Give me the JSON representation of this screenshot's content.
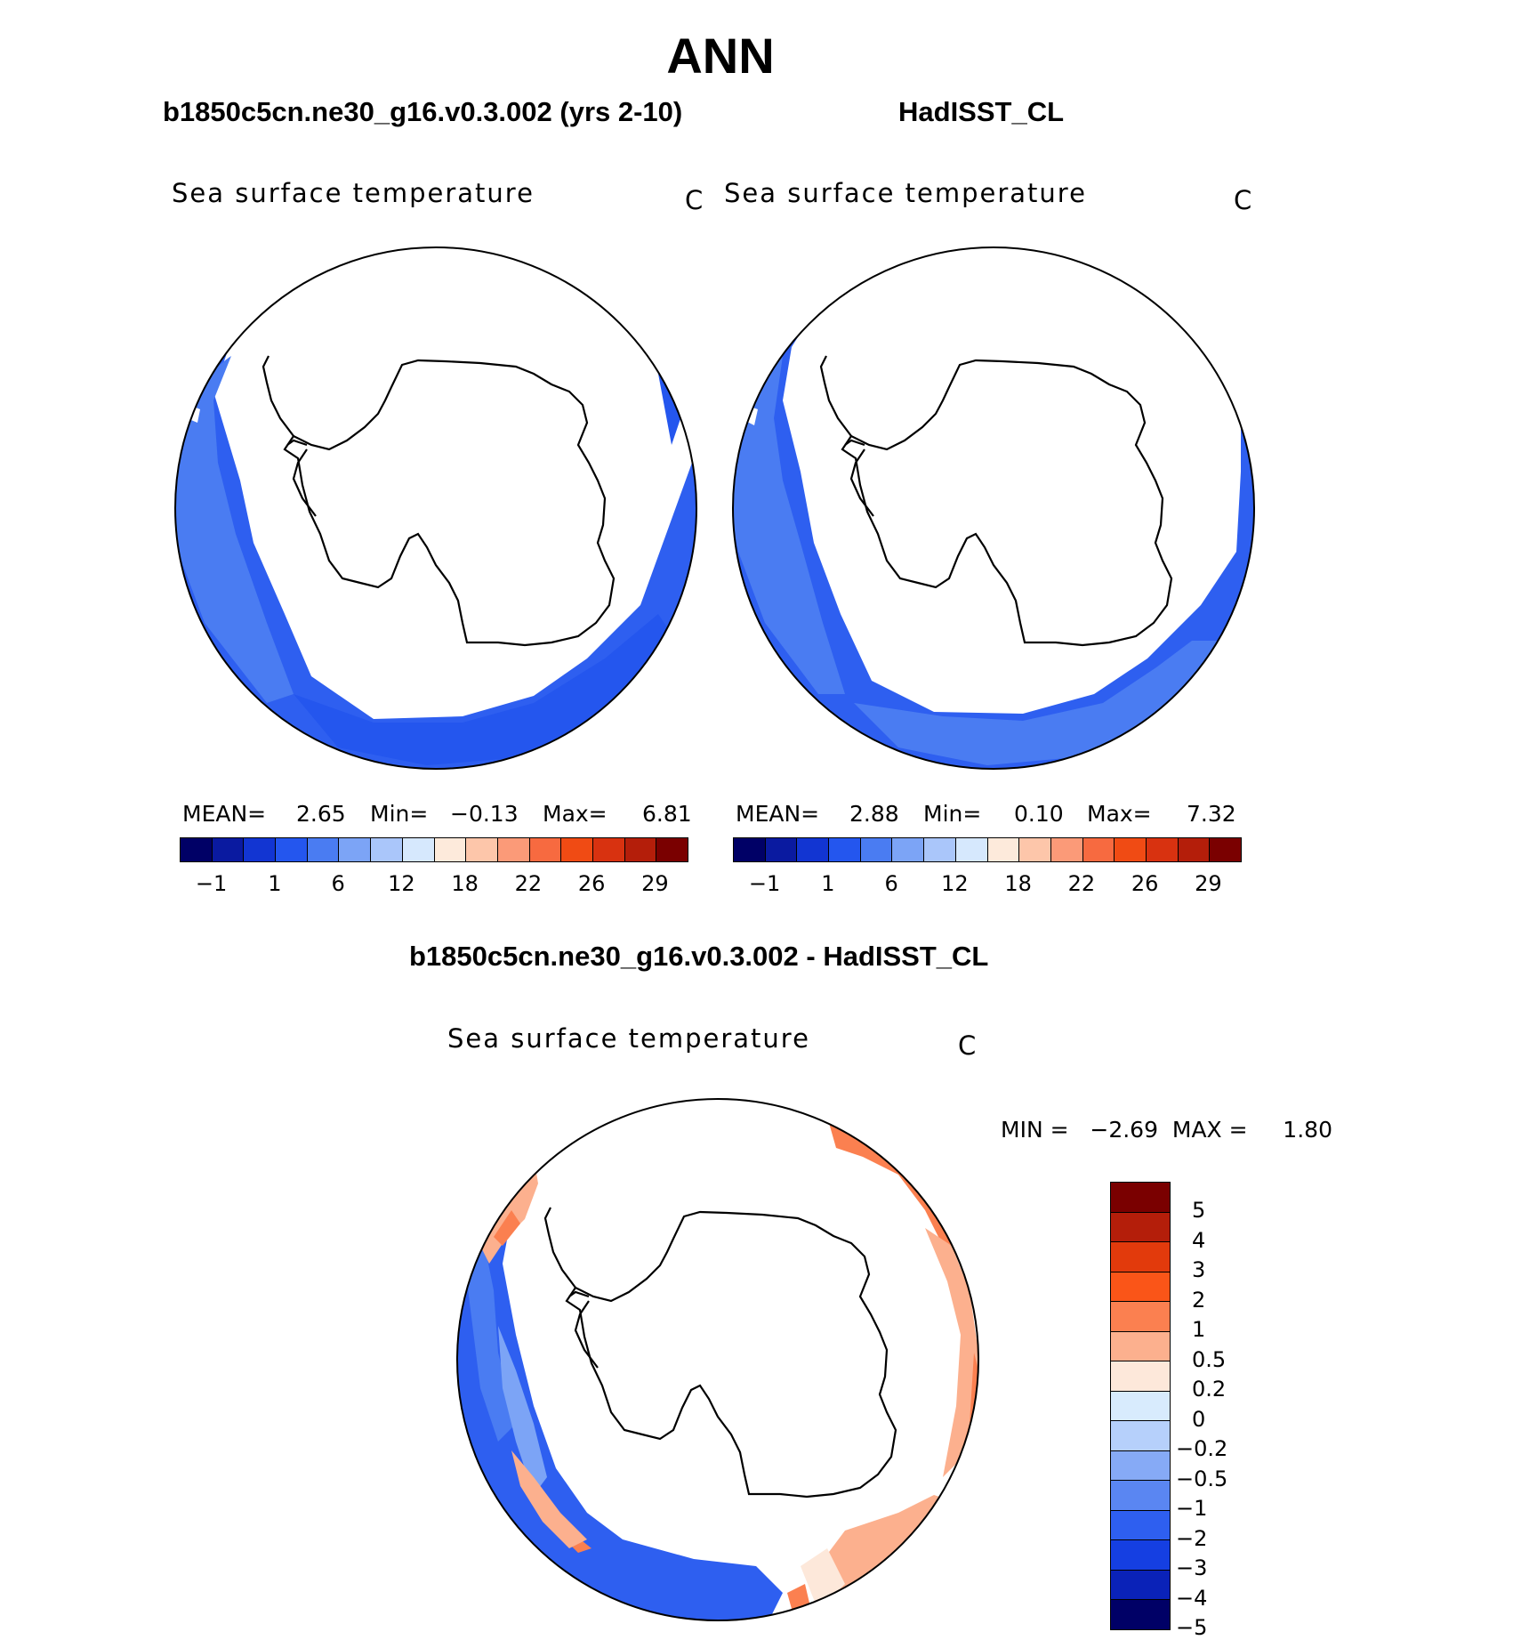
{
  "title": "ANN",
  "panels": {
    "model": {
      "header": "b1850c5cn.ne30_g16.v0.3.002 (yrs 2-10)",
      "variable": "Sea surface temperature",
      "unit": "C",
      "stats": {
        "mean_label": "MEAN=",
        "mean": "2.65",
        "min_label": "Min=",
        "min": "−0.13",
        "max_label": "Max=",
        "max": "6.81"
      }
    },
    "obs": {
      "header": "HadISST_CL",
      "variable": "Sea surface temperature",
      "unit": "C",
      "stats": {
        "mean_label": "MEAN=",
        "mean": "2.88",
        "min_label": "Min=",
        "min": "0.10",
        "max_label": "Max=",
        "max": "7.32"
      }
    },
    "diff": {
      "header": "b1850c5cn.ne30_g16.v0.3.002 - HadISST_CL",
      "variable": "Sea surface temperature",
      "unit": "C",
      "minmax": "MIN =   −2.69  MAX =     1.80"
    }
  },
  "colorbar_abs": {
    "colors": [
      "#000066",
      "#0a1aa0",
      "#1235d2",
      "#2456ee",
      "#4a7cf2",
      "#7ca4f6",
      "#aac6fa",
      "#d6e8fd",
      "#fdeadb",
      "#fdc6aa",
      "#fb9a78",
      "#f76a40",
      "#f04b14",
      "#d83210",
      "#b41e0a",
      "#7a0000"
    ],
    "labels": [
      "−1",
      "1",
      "6",
      "12",
      "18",
      "22",
      "26",
      "29"
    ]
  },
  "colorbar_diff": {
    "colors": [
      "#7a0000",
      "#b41e0a",
      "#e23a0c",
      "#fa5518",
      "#fb8050",
      "#fcb08e",
      "#fde8da",
      "#d8ebfd",
      "#b6d0fb",
      "#86aaf6",
      "#5a86f2",
      "#2e5ff0",
      "#153fe2",
      "#0a22b8",
      "#000066"
    ],
    "labels": [
      "5",
      "4",
      "3",
      "2",
      "1",
      "0.5",
      "0.2",
      "0",
      "−0.2",
      "−0.5",
      "−1",
      "−2",
      "−3",
      "−4",
      "−5"
    ]
  }
}
